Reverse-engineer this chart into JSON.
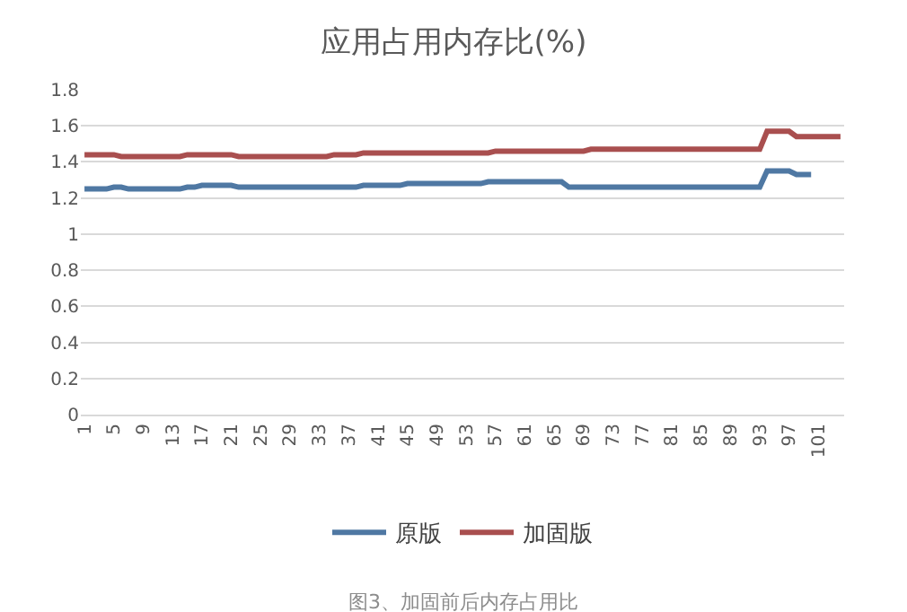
{
  "chart_data": {
    "type": "line",
    "title": "应用占用内存比(%)",
    "x": [
      1,
      2,
      3,
      4,
      5,
      6,
      7,
      8,
      9,
      10,
      11,
      12,
      13,
      14,
      15,
      16,
      17,
      18,
      19,
      20,
      21,
      22,
      23,
      24,
      25,
      26,
      27,
      28,
      29,
      30,
      31,
      32,
      33,
      34,
      35,
      36,
      37,
      38,
      39,
      40,
      41,
      42,
      43,
      44,
      45,
      46,
      47,
      48,
      49,
      50,
      51,
      52,
      53,
      54,
      55,
      56,
      57,
      58,
      59,
      60,
      61,
      62,
      63,
      64,
      65,
      66,
      67,
      68,
      69,
      70,
      71,
      72,
      73,
      74,
      75,
      76,
      77,
      78,
      79,
      80,
      81,
      82,
      83,
      84,
      85,
      86,
      87,
      88,
      89,
      90,
      91,
      92,
      93,
      94,
      95,
      96,
      97,
      98,
      99,
      100,
      101,
      102,
      103,
      104
    ],
    "series": [
      {
        "name": "原版",
        "color": "#4f78a3",
        "values": [
          1.25,
          1.25,
          1.25,
          1.25,
          1.26,
          1.26,
          1.25,
          1.25,
          1.25,
          1.25,
          1.25,
          1.25,
          1.25,
          1.25,
          1.26,
          1.26,
          1.27,
          1.27,
          1.27,
          1.27,
          1.27,
          1.26,
          1.26,
          1.26,
          1.26,
          1.26,
          1.26,
          1.26,
          1.26,
          1.26,
          1.26,
          1.26,
          1.26,
          1.26,
          1.26,
          1.26,
          1.26,
          1.26,
          1.27,
          1.27,
          1.27,
          1.27,
          1.27,
          1.27,
          1.28,
          1.28,
          1.28,
          1.28,
          1.28,
          1.28,
          1.28,
          1.28,
          1.28,
          1.28,
          1.28,
          1.29,
          1.29,
          1.29,
          1.29,
          1.29,
          1.29,
          1.29,
          1.29,
          1.29,
          1.29,
          1.29,
          1.26,
          1.26,
          1.26,
          1.26,
          1.26,
          1.26,
          1.26,
          1.26,
          1.26,
          1.26,
          1.26,
          1.26,
          1.26,
          1.26,
          1.26,
          1.26,
          1.26,
          1.26,
          1.26,
          1.26,
          1.26,
          1.26,
          1.26,
          1.26,
          1.26,
          1.26,
          1.26,
          1.35,
          1.35,
          1.35,
          1.35,
          1.33,
          1.33,
          1.33,
          null,
          null,
          null,
          null
        ]
      },
      {
        "name": "加固版",
        "color": "#a94f4f",
        "values": [
          1.44,
          1.44,
          1.44,
          1.44,
          1.44,
          1.43,
          1.43,
          1.43,
          1.43,
          1.43,
          1.43,
          1.43,
          1.43,
          1.43,
          1.44,
          1.44,
          1.44,
          1.44,
          1.44,
          1.44,
          1.44,
          1.43,
          1.43,
          1.43,
          1.43,
          1.43,
          1.43,
          1.43,
          1.43,
          1.43,
          1.43,
          1.43,
          1.43,
          1.43,
          1.44,
          1.44,
          1.44,
          1.44,
          1.45,
          1.45,
          1.45,
          1.45,
          1.45,
          1.45,
          1.45,
          1.45,
          1.45,
          1.45,
          1.45,
          1.45,
          1.45,
          1.45,
          1.45,
          1.45,
          1.45,
          1.45,
          1.46,
          1.46,
          1.46,
          1.46,
          1.46,
          1.46,
          1.46,
          1.46,
          1.46,
          1.46,
          1.46,
          1.46,
          1.46,
          1.47,
          1.47,
          1.47,
          1.47,
          1.47,
          1.47,
          1.47,
          1.47,
          1.47,
          1.47,
          1.47,
          1.47,
          1.47,
          1.47,
          1.47,
          1.47,
          1.47,
          1.47,
          1.47,
          1.47,
          1.47,
          1.47,
          1.47,
          1.47,
          1.57,
          1.57,
          1.57,
          1.57,
          1.54,
          1.54,
          1.54,
          1.54,
          1.54,
          1.54,
          1.54
        ]
      }
    ],
    "xlim": [
      0.5,
      104.5
    ],
    "xticks": [
      1,
      5,
      9,
      13,
      17,
      21,
      25,
      29,
      33,
      37,
      41,
      45,
      49,
      53,
      57,
      61,
      65,
      69,
      73,
      77,
      81,
      85,
      89,
      93,
      97,
      101
    ],
    "ylim": [
      0,
      1.8
    ],
    "yticks": [
      {
        "value": 0,
        "label": "0"
      },
      {
        "value": 0.2,
        "label": "0.2"
      },
      {
        "value": 0.4,
        "label": "0.4"
      },
      {
        "value": 0.6,
        "label": "0.6"
      },
      {
        "value": 0.8,
        "label": "0.8"
      },
      {
        "value": 1,
        "label": "1"
      },
      {
        "value": 1.2,
        "label": "1.2"
      },
      {
        "value": 1.4,
        "label": "1.4"
      },
      {
        "value": 1.6,
        "label": "1.6"
      },
      {
        "value": 1.8,
        "label": "1.8"
      }
    ],
    "grid": "y",
    "legend": "bottom",
    "marker": "none",
    "line_style": "solid",
    "annotations": [
      "图3、加固前后内存占用比"
    ]
  }
}
